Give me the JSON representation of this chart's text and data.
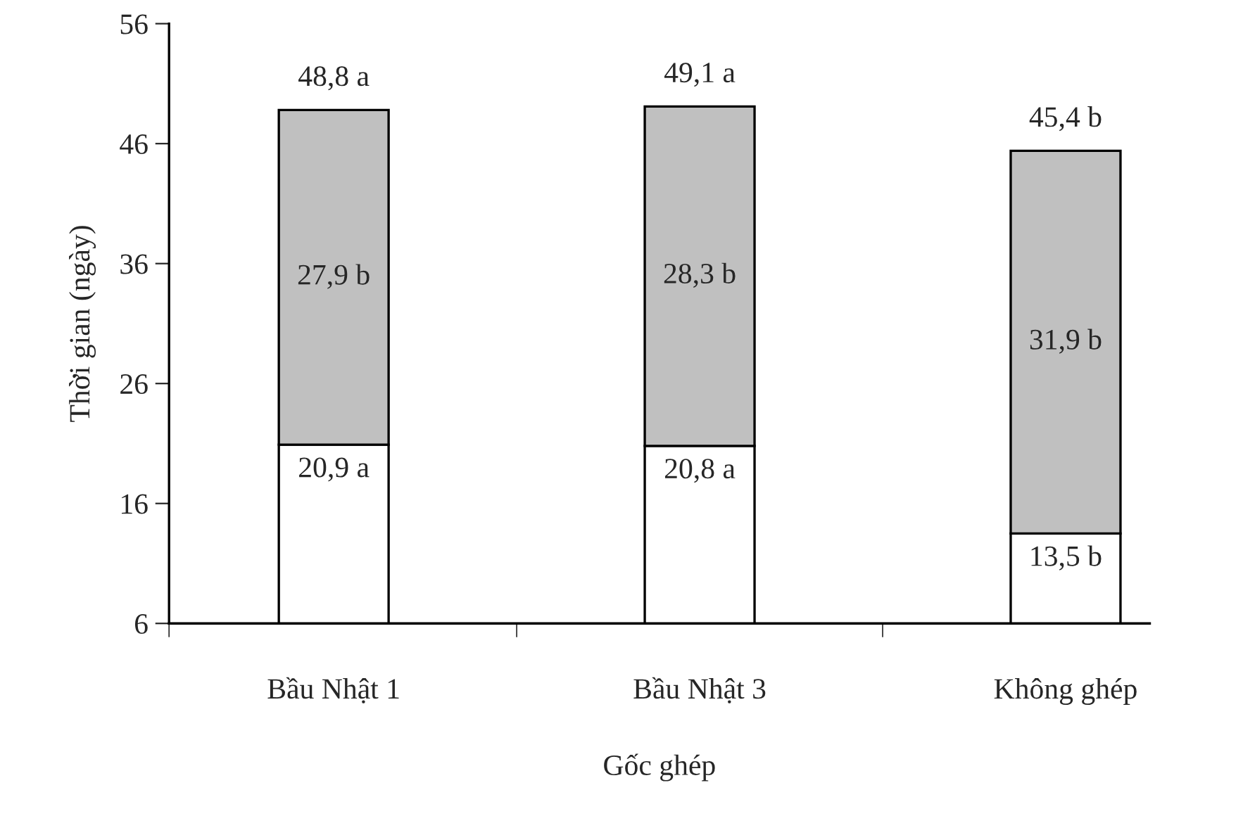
{
  "chart_data": {
    "type": "bar",
    "stacked": true,
    "xlabel": "Gốc ghép",
    "ylabel": "Thời gian (ngày)",
    "categories": [
      "Bầu Nhật 1",
      "Bầu Nhật 3",
      "Không ghép"
    ],
    "series": [
      {
        "color": "#ffffff",
        "values": [
          20.9,
          20.8,
          13.5
        ],
        "value_labels": [
          "20,9 a",
          "20,8 a",
          "13,5 b"
        ]
      },
      {
        "color": "#c0c0c0",
        "values": [
          27.9,
          28.3,
          31.9
        ],
        "value_labels": [
          "27,9 b",
          "28,3 b",
          "31,9 b"
        ]
      }
    ],
    "totals": [
      "48,8 a",
      "49,1 a",
      "45,4 b"
    ],
    "ylim": [
      6,
      56
    ],
    "yticks": [
      6,
      16,
      26,
      36,
      46,
      56
    ],
    "grid": false,
    "legend": false
  }
}
